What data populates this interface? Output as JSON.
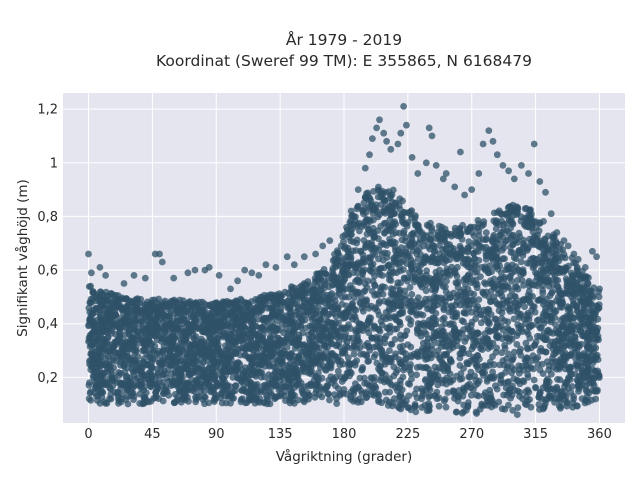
{
  "chart_data": {
    "type": "scatter",
    "title_line1": "År 1979 - 2019",
    "title_line2": "Koordinat (Sweref 99 TM): E 355865, N 6168479",
    "xlabel": "Vågriktning (grader)",
    "ylabel": "Signifikant våghöjd (m)",
    "xlim": [
      -18,
      378
    ],
    "ylim": [
      0.03,
      1.26
    ],
    "x_ticks": [
      0,
      45,
      90,
      135,
      180,
      225,
      270,
      315,
      360
    ],
    "x_tick_labels": [
      "0",
      "45",
      "90",
      "135",
      "180",
      "225",
      "270",
      "315",
      "360"
    ],
    "y_ticks": [
      0.2,
      0.4,
      0.6,
      0.8,
      1.0,
      1.2
    ],
    "y_tick_labels": [
      "0,2",
      "0,4",
      "0,6",
      "0,8",
      "1",
      "1,2"
    ],
    "grid": true,
    "marker_color": "#2f5168",
    "background_color": "#e5e5ef",
    "series": [
      {
        "values": [
          [
            0,
            0.66
          ],
          [
            2,
            0.59
          ],
          [
            8,
            0.61
          ],
          [
            12,
            0.58
          ],
          [
            25,
            0.55
          ],
          [
            32,
            0.58
          ],
          [
            40,
            0.57
          ],
          [
            47,
            0.66
          ],
          [
            50,
            0.66
          ],
          [
            52,
            0.63
          ],
          [
            60,
            0.57
          ],
          [
            70,
            0.59
          ],
          [
            75,
            0.6
          ],
          [
            82,
            0.6
          ],
          [
            85,
            0.61
          ],
          [
            92,
            0.58
          ],
          [
            100,
            0.53
          ],
          [
            105,
            0.56
          ],
          [
            110,
            0.6
          ],
          [
            115,
            0.59
          ],
          [
            120,
            0.58
          ],
          [
            125,
            0.62
          ],
          [
            132,
            0.61
          ],
          [
            140,
            0.65
          ],
          [
            145,
            0.62
          ],
          [
            152,
            0.65
          ],
          [
            160,
            0.66
          ],
          [
            165,
            0.69
          ],
          [
            170,
            0.71
          ],
          [
            178,
            0.69
          ],
          [
            185,
            0.82
          ],
          [
            190,
            0.9
          ],
          [
            195,
            0.98
          ],
          [
            198,
            1.03
          ],
          [
            200,
            1.09
          ],
          [
            203,
            1.13
          ],
          [
            205,
            1.16
          ],
          [
            208,
            1.11
          ],
          [
            210,
            1.08
          ],
          [
            213,
            1.05
          ],
          [
            218,
            1.07
          ],
          [
            220,
            1.11
          ],
          [
            222,
            1.21
          ],
          [
            224,
            1.14
          ],
          [
            228,
            1.02
          ],
          [
            232,
            0.96
          ],
          [
            238,
            1.0
          ],
          [
            240,
            1.13
          ],
          [
            242,
            1.1
          ],
          [
            245,
            0.99
          ],
          [
            250,
            0.94
          ],
          [
            252,
            0.96
          ],
          [
            258,
            0.91
          ],
          [
            262,
            1.04
          ],
          [
            265,
            0.88
          ],
          [
            270,
            0.9
          ],
          [
            275,
            0.96
          ],
          [
            278,
            1.07
          ],
          [
            282,
            1.12
          ],
          [
            285,
            1.08
          ],
          [
            288,
            1.03
          ],
          [
            292,
            0.99
          ],
          [
            296,
            0.97
          ],
          [
            300,
            0.94
          ],
          [
            305,
            0.99
          ],
          [
            310,
            0.96
          ],
          [
            314,
            1.07
          ],
          [
            318,
            0.93
          ],
          [
            322,
            0.89
          ],
          [
            326,
            0.81
          ],
          [
            330,
            0.74
          ],
          [
            335,
            0.71
          ],
          [
            338,
            0.69
          ],
          [
            342,
            0.66
          ],
          [
            345,
            0.64
          ],
          [
            350,
            0.61
          ],
          [
            352,
            0.55
          ],
          [
            355,
            0.67
          ],
          [
            358,
            0.65
          ],
          [
            360,
            0.53
          ]
        ]
      }
    ]
  }
}
